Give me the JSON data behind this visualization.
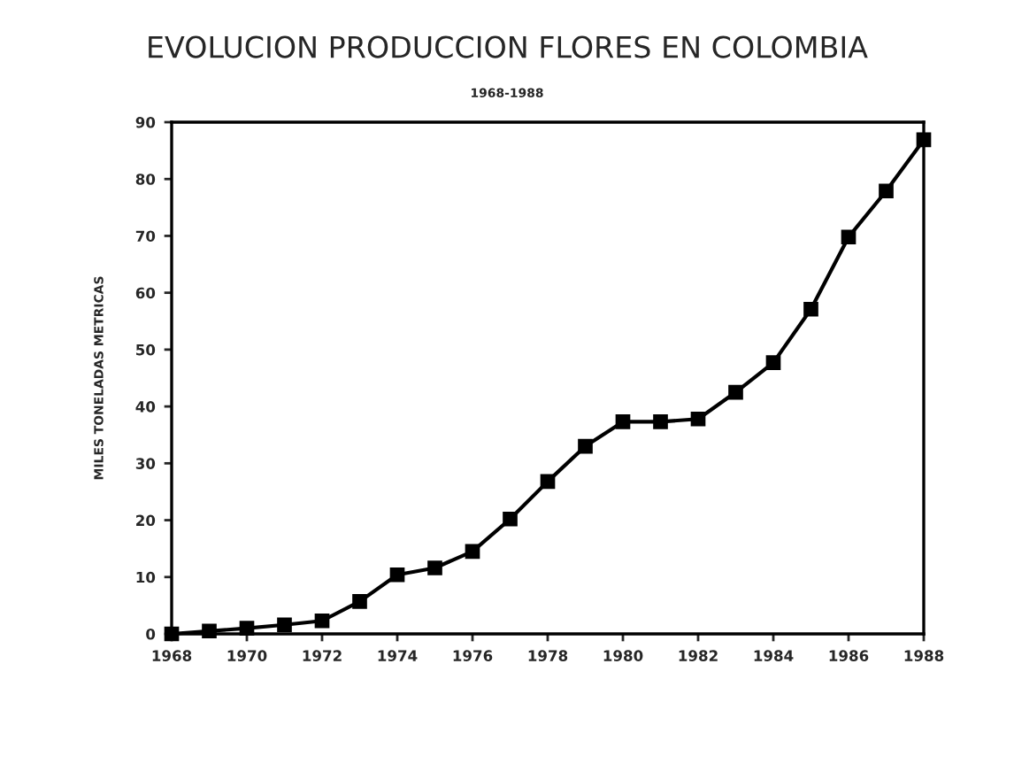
{
  "chart_data": {
    "type": "line",
    "title": "EVOLUCION PRODUCCION FLORES EN COLOMBIA",
    "subtitle": "1968-1988",
    "ylabel": "MILES TONELADAS METRICAS",
    "x": [
      1968,
      1969,
      1970,
      1971,
      1972,
      1973,
      1974,
      1975,
      1976,
      1977,
      1978,
      1979,
      1980,
      1981,
      1982,
      1983,
      1984,
      1985,
      1986,
      1987,
      1988
    ],
    "series": [
      {
        "color": "#000000",
        "values": [
          0,
          0.5,
          1,
          1.6,
          2.3,
          5.7,
          10.4,
          11.6,
          14.5,
          20.2,
          26.8,
          33,
          37.3,
          37.3,
          37.8,
          42.5,
          47.7,
          57.1,
          69.8,
          77.9,
          86.9
        ]
      }
    ],
    "xlim": [
      1968,
      1988
    ],
    "xticks": [
      1968,
      1970,
      1972,
      1974,
      1976,
      1978,
      1980,
      1982,
      1984,
      1986,
      1988
    ],
    "ylim": [
      0,
      90
    ],
    "yticks": [
      0,
      10,
      20,
      30,
      40,
      50,
      60,
      70,
      80,
      90
    ],
    "grid": false,
    "legend": false,
    "marker": "square",
    "line_style": "solid"
  }
}
